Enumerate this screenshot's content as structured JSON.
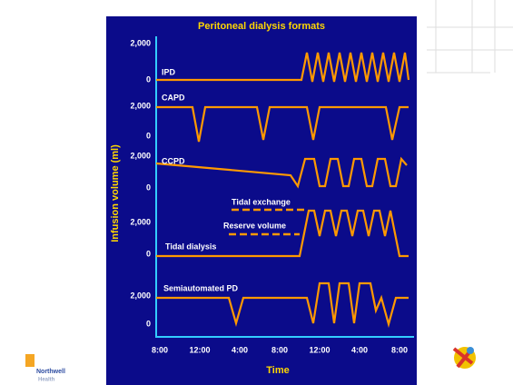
{
  "chart_data": {
    "type": "line",
    "title": "Peritoneal dialysis formats",
    "ylabel": "Infusion volume (ml)",
    "xlabel": "Time",
    "categories": [
      "8:00",
      "12:00",
      "4:00",
      "8:00",
      "12:00",
      "4:00",
      "8:00"
    ],
    "color": "#ff9900",
    "panels": [
      {
        "name": "IPD",
        "yticks": [
          {
            "value": 2000,
            "label": "2,000"
          },
          0
        ]
      },
      {
        "name": "CAPD",
        "yticks": [
          {
            "value": 2000,
            "label": "2,000"
          },
          0
        ]
      },
      {
        "name": "CCPD",
        "yticks": [
          {
            "value": 2000,
            "label": "2,000"
          },
          0
        ]
      },
      {
        "name": "Tidal dialysis",
        "yticks": [
          {
            "value": 2000,
            "label": "2,000"
          },
          0
        ]
      },
      {
        "name": "Semiautomated PD",
        "yticks": [
          {
            "value": 2000,
            "label": "2,000"
          },
          0
        ]
      }
    ],
    "annotations": [
      "Tidal exchange",
      "Reserve volume"
    ]
  },
  "logo": {
    "name": "Northwell",
    "sub": "Health"
  }
}
